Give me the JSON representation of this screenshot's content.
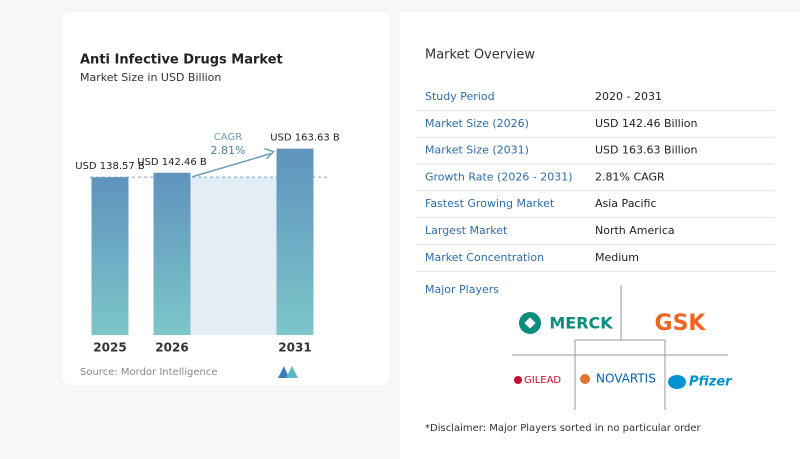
{
  "chart_data": {
    "type": "bar",
    "title": "Anti Infective Drugs Market",
    "subtitle": "Market Size in USD Billion",
    "categories": [
      "2025",
      "2026",
      "2031"
    ],
    "values": [
      138.57,
      142.46,
      163.63
    ],
    "value_labels": [
      "USD 138.57 B",
      "USD 142.46 B",
      "USD 163.63 B"
    ],
    "color": "#5f93bd",
    "ylim": [
      0,
      180
    ],
    "annotations": [
      "CAGR",
      "2.81%"
    ],
    "source": "Source:  Mordor Intelligence"
  },
  "overview": {
    "title": "Market Overview",
    "rows": [
      [
        "Study Period",
        "2020 - 2031"
      ],
      [
        "Market Size (2026)",
        "USD 142.46 Billion"
      ],
      [
        "Market Size (2031)",
        "USD 163.63 Billion"
      ],
      [
        "Growth Rate (2026 - 2031)",
        "2.81% CAGR"
      ],
      [
        "Fastest Growing Market",
        "Asia Pacific"
      ],
      [
        "Largest Market",
        "North America"
      ],
      [
        "Market Concentration",
        "Medium"
      ]
    ]
  },
  "players": {
    "title": "Major Players",
    "names": [
      "MERCK",
      "GSK",
      "GILEAD",
      "NOVARTIS",
      "Pfizer"
    ]
  },
  "disclaimer": "*Disclaimer: Major Players sorted in no particular order"
}
